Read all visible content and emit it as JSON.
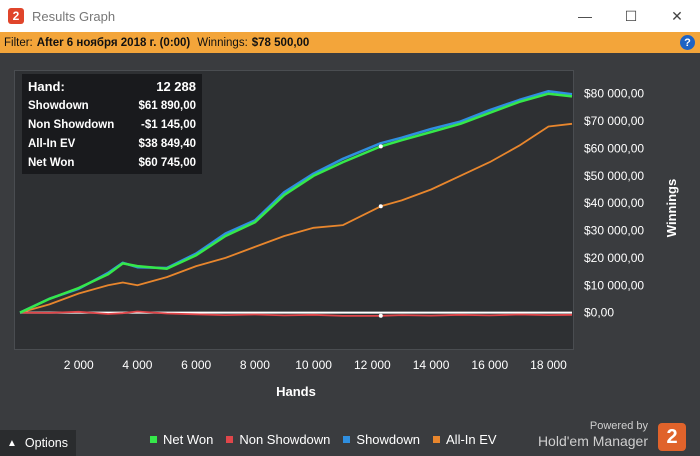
{
  "window": {
    "title": "Results Graph",
    "minimize": "—",
    "maximize": "☐",
    "close": "✕",
    "app_icon": "2"
  },
  "filter": {
    "label": "Filter:",
    "value": "After 6 ноября 2018 г. (0:00)",
    "winnings_label": "Winnings:",
    "winnings_value": "$78 500,00",
    "help": "?"
  },
  "stats": [
    {
      "label": "Hand:",
      "value": "12 288"
    },
    {
      "label": "Showdown",
      "value": "$61 890,00"
    },
    {
      "label": "Non Showdown",
      "value": "-$1 145,00"
    },
    {
      "label": "All-In EV",
      "value": "$38 849,40"
    },
    {
      "label": "Net Won",
      "value": "$60 745,00"
    }
  ],
  "options_label": "Options",
  "brand": {
    "powered": "Powered by",
    "product": "Hold'em Manager",
    "logo": "2"
  },
  "colors": {
    "net_won": "#35e84a",
    "non_showdown": "#e0464a",
    "showdown": "#2f8fe0",
    "allin_ev": "#e8862d",
    "zero_line": "#ffffff"
  },
  "chart_data": {
    "type": "line",
    "xlabel": "Hands",
    "ylabel": "Winnings",
    "xlim": [
      0,
      18800
    ],
    "ylim": [
      -10000,
      85000
    ],
    "x_ticks": [
      2000,
      4000,
      6000,
      8000,
      10000,
      12000,
      14000,
      16000,
      18000
    ],
    "x_tick_labels": [
      "2 000",
      "4 000",
      "6 000",
      "8 000",
      "10 000",
      "12 000",
      "14 000",
      "16 000",
      "18 000"
    ],
    "y_ticks": [
      0,
      10000,
      20000,
      30000,
      40000,
      50000,
      60000,
      70000,
      80000
    ],
    "y_tick_labels": [
      "$0,00",
      "$10 000,00",
      "$20 000,00",
      "$30 000,00",
      "$40 000,00",
      "$50 000,00",
      "$60 000,00",
      "$70 000,00",
      "$80 000,00"
    ],
    "x": [
      0,
      1000,
      2000,
      3000,
      3500,
      4000,
      5000,
      6000,
      7000,
      8000,
      9000,
      10000,
      11000,
      12288,
      13000,
      14000,
      15000,
      16000,
      17000,
      18000,
      18800
    ],
    "series": [
      {
        "name": "Net Won",
        "color_key": "net_won",
        "values": [
          0,
          5000,
          9000,
          14000,
          18000,
          17000,
          16000,
          21000,
          28000,
          33000,
          43000,
          50000,
          55000,
          60745,
          63000,
          66000,
          69000,
          73000,
          77000,
          80000,
          79000
        ]
      },
      {
        "name": "Non Showdown",
        "color_key": "non_showdown",
        "values": [
          0,
          -100,
          300,
          -500,
          -200,
          400,
          -300,
          -600,
          -900,
          -700,
          -1000,
          -800,
          -1200,
          -1145,
          -900,
          -1100,
          -800,
          -1000,
          -700,
          -900,
          -800
        ]
      },
      {
        "name": "Showdown",
        "color_key": "showdown",
        "values": [
          0,
          5100,
          8700,
          14500,
          18200,
          16600,
          16300,
          21600,
          28900,
          33700,
          44000,
          50800,
          56200,
          61890,
          63900,
          67100,
          69800,
          74000,
          77700,
          80900,
          79800
        ]
      },
      {
        "name": "All-In EV",
        "color_key": "allin_ev",
        "values": [
          0,
          3000,
          7000,
          10000,
          11000,
          10000,
          13000,
          17000,
          20000,
          24000,
          28000,
          31000,
          32000,
          38849,
          41000,
          45000,
          50000,
          55000,
          61000,
          68000,
          69000
        ]
      }
    ],
    "legend": [
      "Net Won",
      "Non Showdown",
      "Showdown",
      "All-In EV"
    ],
    "legend_position": "bottom"
  }
}
